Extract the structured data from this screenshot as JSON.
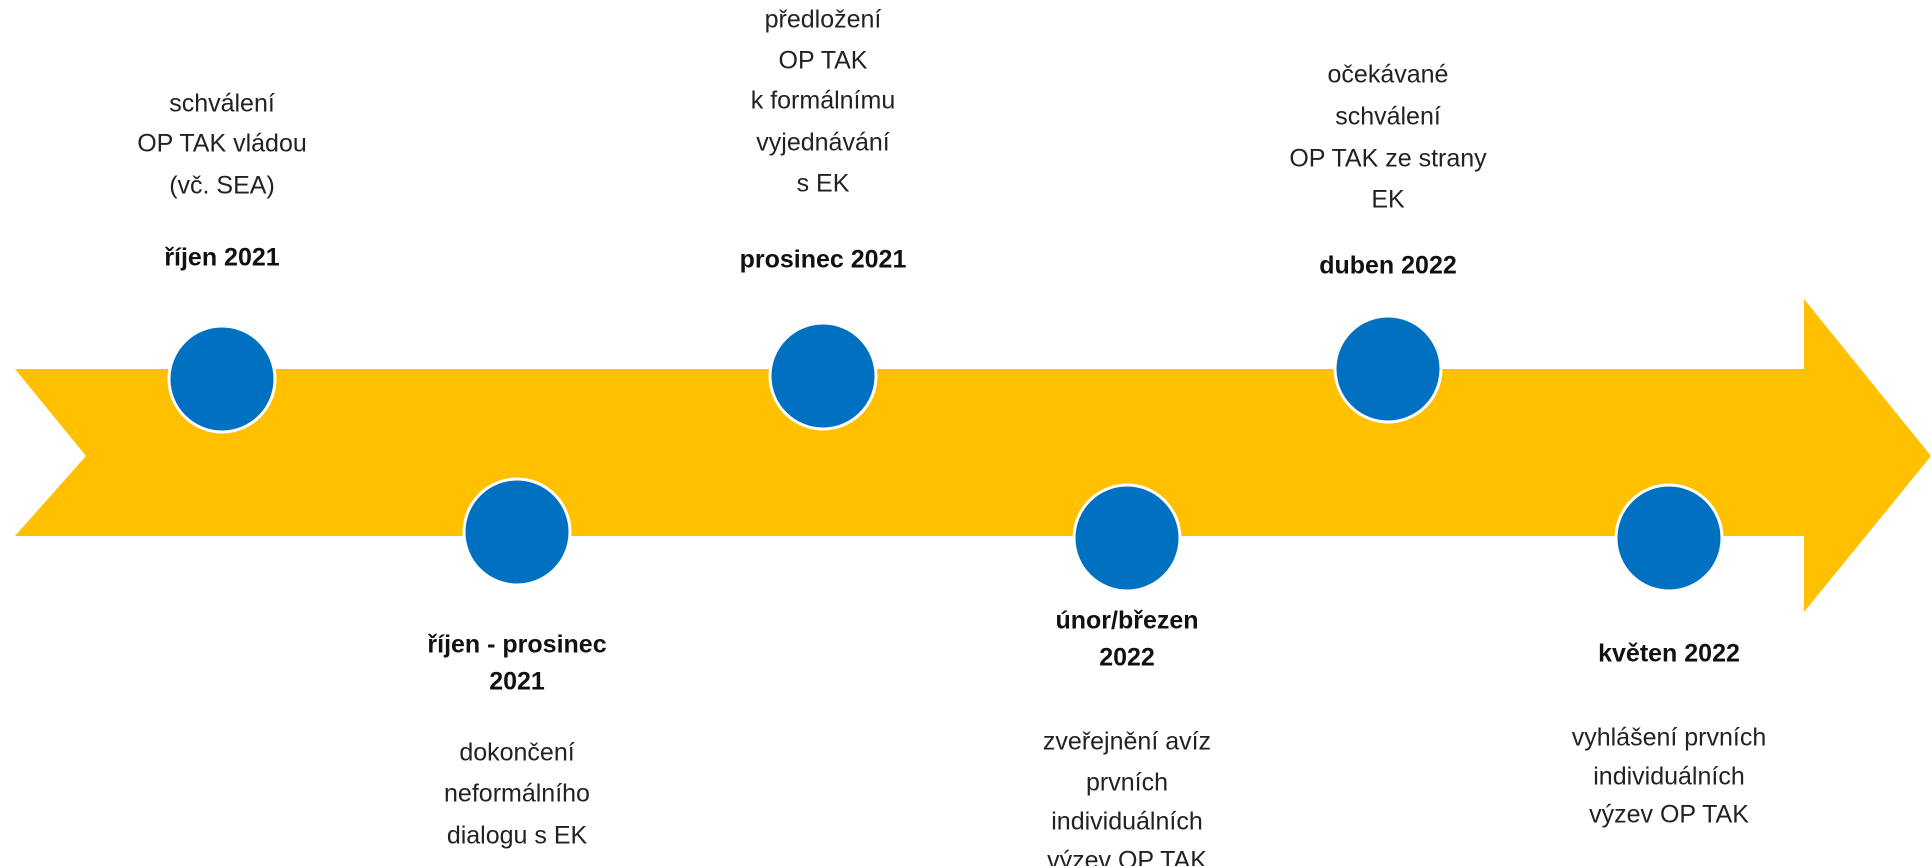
{
  "events": [
    {
      "date": [
        "říjen 2021"
      ],
      "description": [
        "schválení",
        "OP TAK vládou",
        "(vč. SEA)"
      ]
    },
    {
      "date": [
        "říjen - prosinec",
        "2021"
      ],
      "description": [
        "dokončení",
        "neformálního",
        "dialogu s EK"
      ]
    },
    {
      "date": [
        "prosinec 2021"
      ],
      "description": [
        "předložení",
        "OP TAK",
        "k formálnímu",
        "vyjednávání",
        "s EK"
      ]
    },
    {
      "date": [
        "únor/březen",
        "2022"
      ],
      "description": [
        "zveřejnění avíz",
        "prvních",
        "individuálních",
        "výzev OP TAK"
      ]
    },
    {
      "date": [
        "duben 2022"
      ],
      "description": [
        "očekávané",
        "schválení",
        "OP TAK ze strany",
        "EK"
      ]
    },
    {
      "date": [
        "květen 2022"
      ],
      "description": [
        "vyhlášení prvních",
        "individuálních",
        "výzev OP TAK"
      ]
    }
  ]
}
